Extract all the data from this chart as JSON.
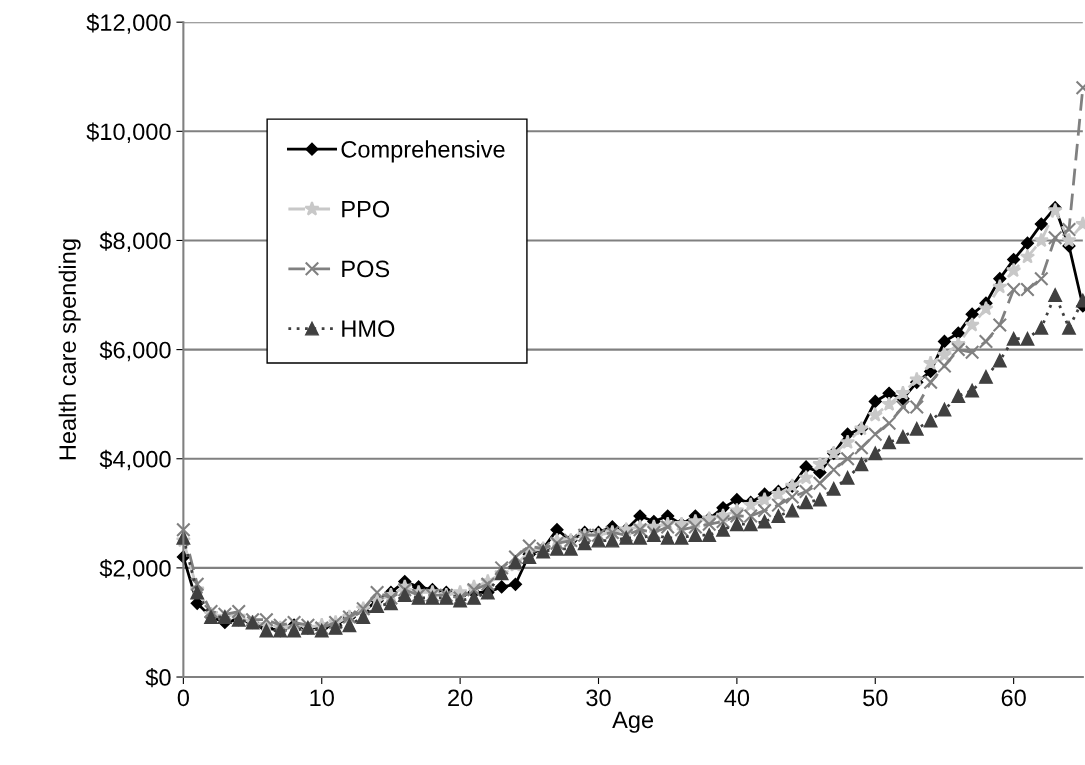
{
  "chart_data": {
    "type": "line",
    "xlabel": "Age",
    "ylabel": "Health care spending",
    "x": [
      0,
      1,
      2,
      3,
      4,
      5,
      6,
      7,
      8,
      9,
      10,
      11,
      12,
      13,
      14,
      15,
      16,
      17,
      18,
      19,
      20,
      21,
      22,
      23,
      24,
      25,
      26,
      27,
      28,
      29,
      30,
      31,
      32,
      33,
      34,
      35,
      36,
      37,
      38,
      39,
      40,
      41,
      42,
      43,
      44,
      45,
      46,
      47,
      48,
      49,
      50,
      51,
      52,
      53,
      54,
      55,
      56,
      57,
      58,
      59,
      60,
      61,
      62,
      63,
      64,
      65
    ],
    "xlim": [
      0,
      65
    ],
    "xticks": [
      0,
      10,
      20,
      30,
      40,
      50,
      60
    ],
    "ylim": [
      0,
      12000
    ],
    "yticks": [
      {
        "value": 0,
        "label": "$0"
      },
      {
        "value": 2000,
        "label": "$2,000"
      },
      {
        "value": 4000,
        "label": "$4,000"
      },
      {
        "value": 6000,
        "label": "$6,000"
      },
      {
        "value": 8000,
        "label": "$8,000"
      },
      {
        "value": 10000,
        "label": "$10,000"
      },
      {
        "value": 12000,
        "label": "$12,000"
      }
    ],
    "grid": "y",
    "legend": "top left",
    "series": [
      {
        "name": "Comprehensive",
        "color": "#000000",
        "marker": "diamond",
        "line_style": "solid",
        "values": [
          2200,
          1350,
          1100,
          1000,
          1050,
          1000,
          900,
          850,
          950,
          900,
          900,
          950,
          1100,
          1200,
          1400,
          1550,
          1750,
          1650,
          1600,
          1550,
          1500,
          1550,
          1550,
          1650,
          1700,
          2250,
          2350,
          2700,
          2500,
          2650,
          2650,
          2750,
          2700,
          2950,
          2850,
          2950,
          2800,
          2950,
          2900,
          3100,
          3250,
          3200,
          3350,
          3400,
          3500,
          3850,
          3750,
          4100,
          4450,
          4550,
          5050,
          5200,
          5100,
          5400,
          5600,
          6150,
          6300,
          6650,
          6850,
          7300,
          7650,
          7950,
          8300,
          8600,
          7900,
          6800
        ]
      },
      {
        "name": "PPO",
        "color": "#c8c8c8",
        "marker": "star",
        "line_style": "dashed",
        "values": [
          2500,
          1600,
          1150,
          1100,
          1100,
          1000,
          950,
          900,
          900,
          900,
          950,
          1000,
          1100,
          1250,
          1400,
          1500,
          1650,
          1550,
          1550,
          1500,
          1550,
          1650,
          1750,
          1900,
          2050,
          2300,
          2350,
          2500,
          2500,
          2600,
          2600,
          2650,
          2700,
          2750,
          2750,
          2800,
          2800,
          2850,
          2900,
          2950,
          3050,
          3150,
          3250,
          3350,
          3500,
          3650,
          3900,
          4100,
          4300,
          4550,
          4800,
          5000,
          5200,
          5450,
          5750,
          5900,
          6100,
          6450,
          6750,
          7150,
          7450,
          7700,
          8000,
          8550,
          8000,
          8300
        ]
      },
      {
        "name": "POS",
        "color": "#808080",
        "marker": "cross",
        "line_style": "dashed",
        "values": [
          2700,
          1700,
          1200,
          1150,
          1200,
          1050,
          1050,
          950,
          1000,
          950,
          900,
          1000,
          1100,
          1250,
          1550,
          1450,
          1600,
          1500,
          1500,
          1500,
          1450,
          1600,
          1700,
          2000,
          2200,
          2400,
          2350,
          2450,
          2500,
          2600,
          2600,
          2650,
          2600,
          2700,
          2650,
          2750,
          2700,
          2750,
          2800,
          2850,
          2950,
          2950,
          3050,
          3150,
          3300,
          3400,
          3550,
          3800,
          4000,
          4200,
          4450,
          4650,
          4950,
          4950,
          5400,
          5700,
          6000,
          5950,
          6150,
          6450,
          7100,
          7100,
          7300,
          8050,
          8200,
          10800
        ]
      },
      {
        "name": "HMO",
        "color": "#404040",
        "marker": "triangle",
        "line_style": "dotted",
        "values": [
          2550,
          1550,
          1100,
          1100,
          1050,
          1000,
          850,
          850,
          850,
          900,
          850,
          900,
          950,
          1100,
          1300,
          1350,
          1500,
          1450,
          1450,
          1450,
          1400,
          1450,
          1550,
          1900,
          2100,
          2200,
          2300,
          2350,
          2350,
          2450,
          2500,
          2500,
          2550,
          2550,
          2600,
          2550,
          2550,
          2600,
          2600,
          2700,
          2800,
          2800,
          2850,
          2950,
          3050,
          3200,
          3250,
          3450,
          3650,
          3900,
          4100,
          4300,
          4400,
          4550,
          4700,
          4900,
          5150,
          5250,
          5500,
          5800,
          6200,
          6200,
          6400,
          7000,
          6400,
          6900
        ]
      }
    ]
  }
}
